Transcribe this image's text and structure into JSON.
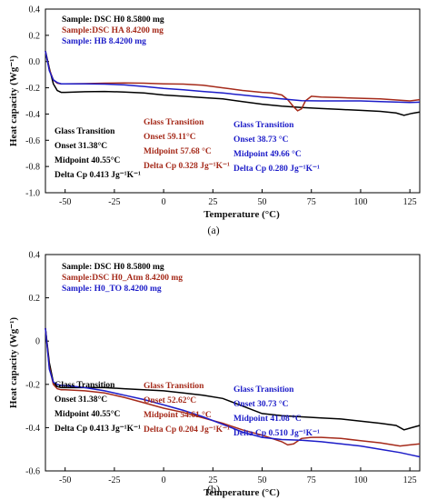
{
  "chart_data": [
    {
      "type": "line",
      "panel_label": "(a)",
      "ylabel": "Heat capacity (Wg⁻¹)",
      "xlabel": "Temperature (°C)",
      "xlim": [
        -60,
        130
      ],
      "ylim": [
        -1.0,
        0.4
      ],
      "xticks": [
        -50,
        -25,
        0,
        25,
        50,
        75,
        100,
        125
      ],
      "yticks": [
        0.4,
        0.2,
        0.0,
        -0.2,
        -0.4,
        -0.6,
        -0.8,
        -1.0
      ],
      "ytick_labels": [
        "0.4",
        "0.2",
        "0.0",
        "-0.2",
        "-0.4",
        "-0.6",
        "-0.8",
        "-1.0"
      ],
      "legend": [
        "Sample: DSC H0 8.5800 mg",
        "Sample:DSC HA 8.4200 mg",
        "Sample: HB 8.4200 mg"
      ],
      "series": [
        {
          "name": "Sample: DSC H0 8.5800 mg",
          "color": "#000000",
          "x": [
            -60,
            -58,
            -56,
            -54,
            -52,
            -50,
            -40,
            -30,
            -20,
            -10,
            0,
            10,
            20,
            30,
            40,
            50,
            60,
            70,
            80,
            90,
            100,
            110,
            118,
            122,
            126,
            130
          ],
          "y": [
            0.08,
            -0.05,
            -0.17,
            -0.22,
            -0.235,
            -0.235,
            -0.23,
            -0.228,
            -0.232,
            -0.24,
            -0.255,
            -0.265,
            -0.275,
            -0.285,
            -0.305,
            -0.325,
            -0.34,
            -0.35,
            -0.358,
            -0.365,
            -0.372,
            -0.38,
            -0.392,
            -0.41,
            -0.395,
            -0.385
          ]
        },
        {
          "name": "Sample:DSC HA 8.4200 mg",
          "color": "#a52a1a",
          "x": [
            -60,
            -58,
            -56,
            -54,
            -52,
            -50,
            -40,
            -30,
            -20,
            -10,
            0,
            10,
            20,
            30,
            40,
            50,
            55,
            60,
            63,
            66,
            68,
            70,
            72,
            75,
            80,
            90,
            100,
            110,
            120,
            125,
            130
          ],
          "y": [
            0.08,
            -0.06,
            -0.14,
            -0.165,
            -0.17,
            -0.17,
            -0.168,
            -0.165,
            -0.163,
            -0.165,
            -0.17,
            -0.172,
            -0.18,
            -0.2,
            -0.22,
            -0.235,
            -0.24,
            -0.255,
            -0.29,
            -0.345,
            -0.375,
            -0.36,
            -0.3,
            -0.265,
            -0.27,
            -0.275,
            -0.28,
            -0.285,
            -0.295,
            -0.3,
            -0.29
          ]
        },
        {
          "name": "Sample: HB 8.4200 mg",
          "color": "#1c1cc8",
          "x": [
            -60,
            -58,
            -56,
            -54,
            -52,
            -50,
            -40,
            -30,
            -20,
            -10,
            0,
            10,
            20,
            30,
            40,
            50,
            60,
            70,
            80,
            90,
            100,
            110,
            120,
            125,
            130
          ],
          "y": [
            0.08,
            -0.07,
            -0.14,
            -0.16,
            -0.17,
            -0.17,
            -0.17,
            -0.172,
            -0.178,
            -0.19,
            -0.205,
            -0.215,
            -0.228,
            -0.24,
            -0.255,
            -0.27,
            -0.285,
            -0.298,
            -0.3,
            -0.3,
            -0.3,
            -0.305,
            -0.31,
            -0.312,
            -0.31
          ]
        }
      ],
      "annotations": [
        {
          "lines": [
            "Glass Transition",
            "Onset 31.38°C",
            "Midpoint 40.55°C",
            "Delta Cp 0.413 Jg⁻¹K⁻¹"
          ],
          "color": "#000000"
        },
        {
          "lines": [
            "Glass Transition",
            "Onset 59.11°C",
            "Midpoint 57.68 °C",
            "Delta Cp 0.328 Jg⁻¹K⁻¹"
          ],
          "color": "#a52a1a"
        },
        {
          "lines": [
            "Glass Transition",
            "Onset 38.73 °C",
            "Midpoint 49.66 °C",
            "Delta Cp 0.280 Jg⁻¹K⁻¹"
          ],
          "color": "#1c1cc8"
        }
      ]
    },
    {
      "type": "line",
      "panel_label": "(b)",
      "ylabel": "Heat capacity (Wg⁻¹)",
      "xlabel": "Temperature (°C)",
      "xlim": [
        -60,
        130
      ],
      "ylim": [
        -0.6,
        0.4
      ],
      "xticks": [
        -50,
        -25,
        0,
        25,
        50,
        75,
        100,
        125
      ],
      "yticks": [
        0.4,
        0.2,
        0.0,
        -0.2,
        -0.4,
        -0.6
      ],
      "ytick_labels": [
        "0.4",
        "0.2",
        "0",
        "-0.2",
        "-0.4",
        "-0.6"
      ],
      "legend": [
        "Sample: DSC H0 8.5800 mg",
        "Sample:DSC H0_Atm 8.4200 mg",
        "Sample: H0_TO 8.4200 mg"
      ],
      "series": [
        {
          "name": "Sample: DSC H0 8.5800 mg",
          "color": "#000000",
          "x": [
            -60,
            -58,
            -56,
            -54,
            -52,
            -50,
            -40,
            -30,
            -20,
            -10,
            0,
            10,
            20,
            30,
            40,
            50,
            60,
            70,
            80,
            90,
            100,
            110,
            118,
            122,
            126,
            130
          ],
          "y": [
            0.06,
            -0.1,
            -0.19,
            -0.21,
            -0.215,
            -0.215,
            -0.215,
            -0.215,
            -0.22,
            -0.225,
            -0.23,
            -0.24,
            -0.25,
            -0.265,
            -0.3,
            -0.335,
            -0.345,
            -0.35,
            -0.355,
            -0.36,
            -0.37,
            -0.38,
            -0.39,
            -0.41,
            -0.4,
            -0.39
          ]
        },
        {
          "name": "Sample:DSC H0_Atm 8.4200 mg",
          "color": "#a52a1a",
          "x": [
            -60,
            -58,
            -56,
            -54,
            -52,
            -50,
            -40,
            -30,
            -20,
            -10,
            0,
            10,
            20,
            30,
            40,
            50,
            55,
            60,
            63,
            66,
            70,
            75,
            80,
            90,
            100,
            110,
            120,
            125,
            130
          ],
          "y": [
            0.06,
            -0.12,
            -0.2,
            -0.22,
            -0.225,
            -0.225,
            -0.23,
            -0.24,
            -0.26,
            -0.285,
            -0.31,
            -0.33,
            -0.355,
            -0.38,
            -0.41,
            -0.435,
            -0.45,
            -0.465,
            -0.48,
            -0.475,
            -0.45,
            -0.445,
            -0.445,
            -0.45,
            -0.46,
            -0.47,
            -0.485,
            -0.48,
            -0.475
          ]
        },
        {
          "name": "Sample: H0_TO 8.4200 mg",
          "color": "#1c1cc8",
          "x": [
            -60,
            -58,
            -56,
            -54,
            -52,
            -50,
            -40,
            -30,
            -20,
            -10,
            0,
            10,
            20,
            30,
            40,
            50,
            60,
            70,
            80,
            90,
            100,
            110,
            120,
            125,
            130
          ],
          "y": [
            0.06,
            -0.13,
            -0.19,
            -0.2,
            -0.205,
            -0.205,
            -0.215,
            -0.23,
            -0.25,
            -0.27,
            -0.295,
            -0.32,
            -0.35,
            -0.385,
            -0.42,
            -0.445,
            -0.455,
            -0.458,
            -0.465,
            -0.475,
            -0.485,
            -0.5,
            -0.515,
            -0.525,
            -0.535
          ]
        }
      ],
      "annotations": [
        {
          "lines": [
            "Glass Transition",
            "Onset 31.38°C",
            "Midpoint 40.55°C",
            "Delta Cp 0.413 Jg⁻¹K⁻¹"
          ],
          "color": "#000000"
        },
        {
          "lines": [
            "Glass Transition",
            "Onset 52.62°C",
            "Midpoint 54.61 °C",
            "Delta Cp 0.204 Jg⁻¹K⁻¹"
          ],
          "color": "#a52a1a"
        },
        {
          "lines": [
            "Glass Transition",
            "Onset 30.73 °C",
            "Midpoint 41.08 °C",
            "Delta Cp 0.510 Jg⁻¹K⁻¹"
          ],
          "color": "#1c1cc8"
        }
      ]
    }
  ]
}
